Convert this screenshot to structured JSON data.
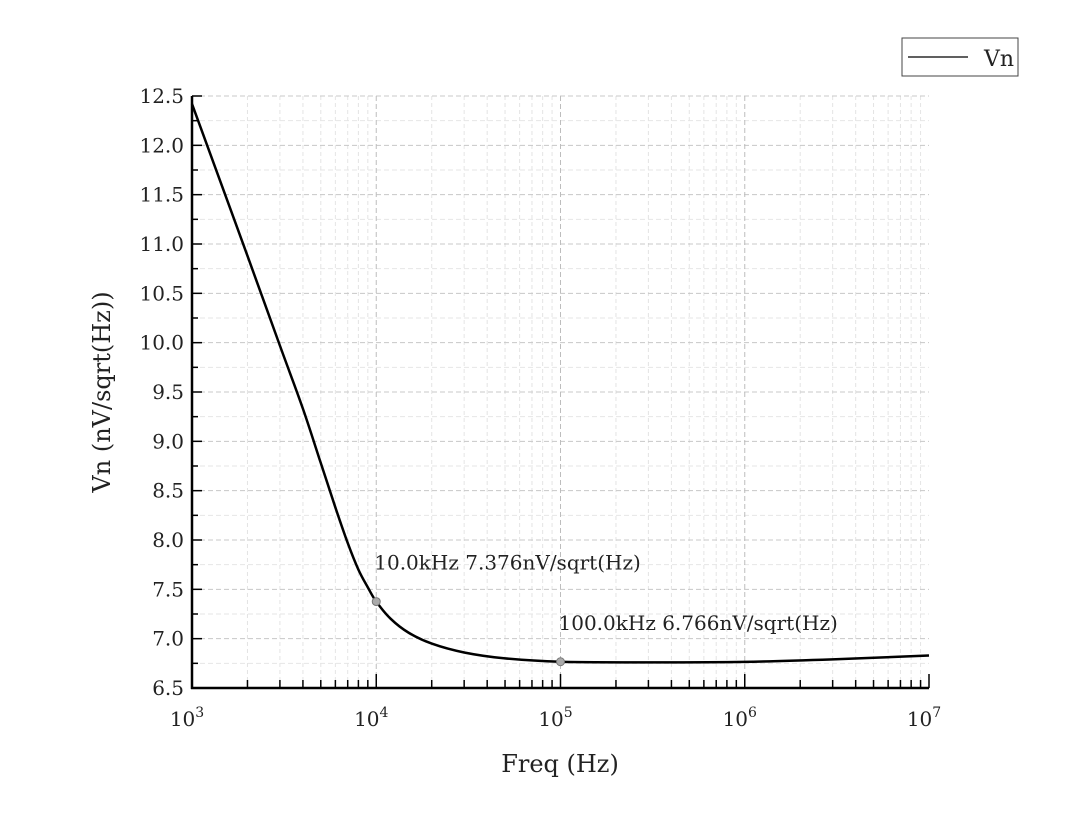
{
  "chart_data": {
    "type": "line",
    "xlabel": "Freq (Hz)",
    "ylabel": "Vn (nV/sqrt(Hz))",
    "xscale": "log",
    "xlim": [
      1000,
      10000000
    ],
    "ylim": [
      6.5,
      12.5
    ],
    "x_ticks": [
      {
        "base": "10",
        "exp": "3"
      },
      {
        "base": "10",
        "exp": "4"
      },
      {
        "base": "10",
        "exp": "5"
      },
      {
        "base": "10",
        "exp": "6"
      },
      {
        "base": "10",
        "exp": "7"
      }
    ],
    "y_ticks": [
      "6.5",
      "7.0",
      "7.5",
      "8.0",
      "8.5",
      "9.0",
      "9.5",
      "10.0",
      "10.5",
      "11.0",
      "11.5",
      "12.0",
      "12.5"
    ],
    "grid": true,
    "legend": "top-right",
    "series": [
      {
        "name": "Vn",
        "color": "#000000",
        "x": [
          1000,
          1500,
          2000,
          3000,
          4000,
          5000,
          6000,
          7000,
          8000,
          9000,
          10000,
          12000,
          15000,
          20000,
          30000,
          50000,
          100000,
          300000,
          1000000,
          3000000,
          10000000
        ],
        "y": [
          12.42,
          11.52,
          10.88,
          9.97,
          9.33,
          8.78,
          8.33,
          7.97,
          7.7,
          7.52,
          7.376,
          7.2,
          7.06,
          6.95,
          6.86,
          6.8,
          6.766,
          6.76,
          6.765,
          6.79,
          6.83
        ]
      }
    ],
    "annotations": [
      {
        "x": 10000,
        "y": 7.376,
        "text": "10.0kHz 7.376nV/sqrt(Hz)"
      },
      {
        "x": 100000,
        "y": 6.766,
        "text": "100.0kHz 6.766nV/sqrt(Hz)"
      }
    ]
  }
}
